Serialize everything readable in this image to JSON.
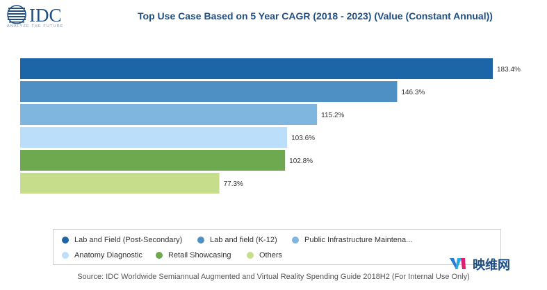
{
  "logo": {
    "text": "IDC",
    "tagline": "ANALYZE THE FUTURE"
  },
  "chart_data": {
    "type": "bar",
    "orientation": "horizontal",
    "title": "Top Use Case Based on 5 Year CAGR (2018 - 2023) (Value (Constant Annual))",
    "categories": [
      "Lab and Field (Post-Secondary)",
      "Lab and field (K-12)",
      "Public Infrastructure Maintena...",
      "Anatomy Diagnostic",
      "Retail Showcasing",
      "Others"
    ],
    "values": [
      183.4,
      146.3,
      115.2,
      103.6,
      102.8,
      77.3
    ],
    "value_labels": [
      "183.4%",
      "146.3%",
      "115.2%",
      "103.6%",
      "102.8%",
      "77.3%"
    ],
    "colors": [
      "#1c66a8",
      "#4e8fc4",
      "#7fb6df",
      "#bbdffa",
      "#6fa94f",
      "#c6de8c"
    ],
    "xlim": [
      0,
      183.4
    ],
    "grid": false,
    "legend_position": "bottom"
  },
  "source": "Source: IDC Worldwide Semiannual Augmented and Virtual Reality Spending Guide 2018H2 (For Internal Use Only)",
  "watermark": {
    "text": "映维网"
  }
}
